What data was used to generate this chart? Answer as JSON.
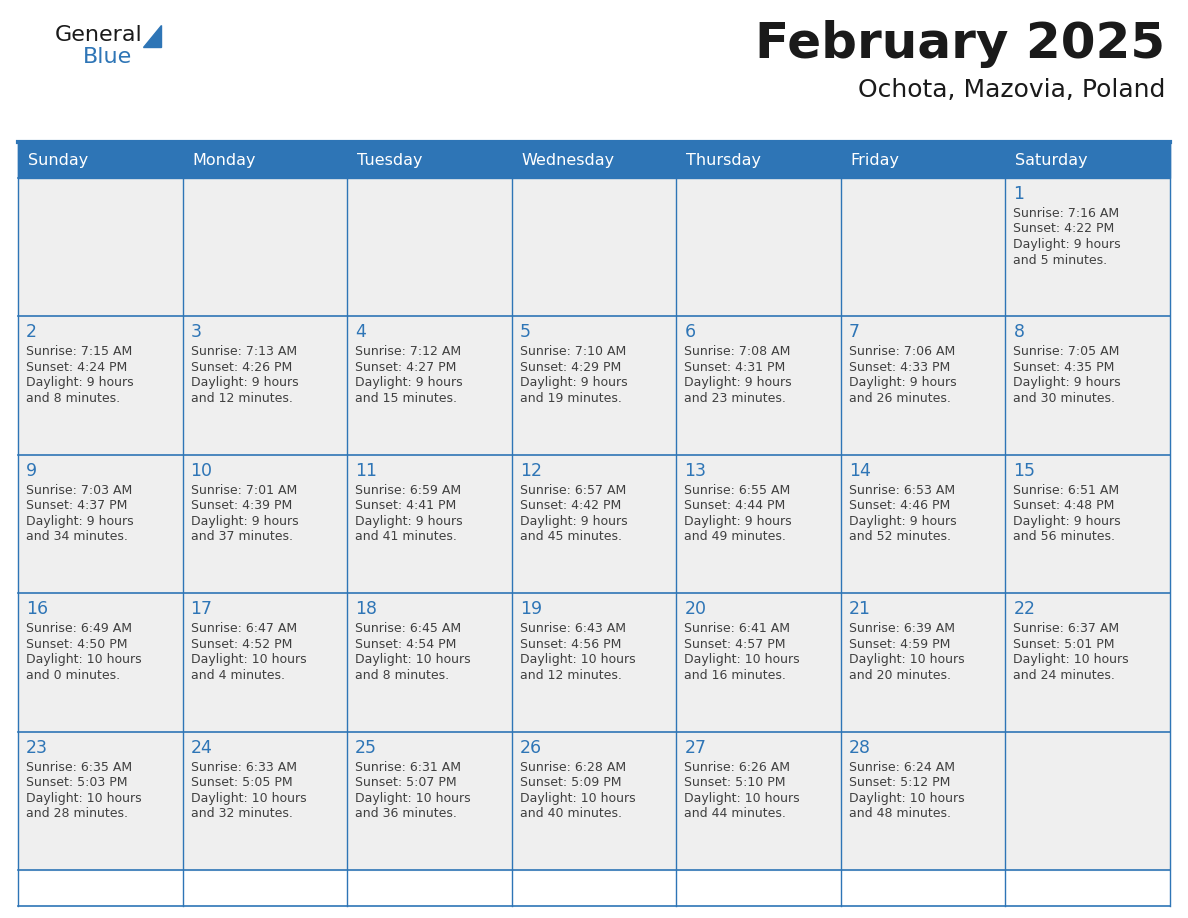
{
  "title": "February 2025",
  "subtitle": "Ochota, Mazovia, Poland",
  "days_of_week": [
    "Sunday",
    "Monday",
    "Tuesday",
    "Wednesday",
    "Thursday",
    "Friday",
    "Saturday"
  ],
  "header_bg": "#2E75B6",
  "header_text": "#FFFFFF",
  "cell_bg": "#EFEFEF",
  "border_color": "#2E75B6",
  "day_num_color": "#2E75B6",
  "text_color": "#404040",
  "weeks": [
    [
      {
        "day": null,
        "sunrise": null,
        "sunset": null,
        "daylight": null
      },
      {
        "day": null,
        "sunrise": null,
        "sunset": null,
        "daylight": null
      },
      {
        "day": null,
        "sunrise": null,
        "sunset": null,
        "daylight": null
      },
      {
        "day": null,
        "sunrise": null,
        "sunset": null,
        "daylight": null
      },
      {
        "day": null,
        "sunrise": null,
        "sunset": null,
        "daylight": null
      },
      {
        "day": null,
        "sunrise": null,
        "sunset": null,
        "daylight": null
      },
      {
        "day": 1,
        "sunrise": "7:16 AM",
        "sunset": "4:22 PM",
        "daylight": "9 hours\nand 5 minutes."
      }
    ],
    [
      {
        "day": 2,
        "sunrise": "7:15 AM",
        "sunset": "4:24 PM",
        "daylight": "9 hours\nand 8 minutes."
      },
      {
        "day": 3,
        "sunrise": "7:13 AM",
        "sunset": "4:26 PM",
        "daylight": "9 hours\nand 12 minutes."
      },
      {
        "day": 4,
        "sunrise": "7:12 AM",
        "sunset": "4:27 PM",
        "daylight": "9 hours\nand 15 minutes."
      },
      {
        "day": 5,
        "sunrise": "7:10 AM",
        "sunset": "4:29 PM",
        "daylight": "9 hours\nand 19 minutes."
      },
      {
        "day": 6,
        "sunrise": "7:08 AM",
        "sunset": "4:31 PM",
        "daylight": "9 hours\nand 23 minutes."
      },
      {
        "day": 7,
        "sunrise": "7:06 AM",
        "sunset": "4:33 PM",
        "daylight": "9 hours\nand 26 minutes."
      },
      {
        "day": 8,
        "sunrise": "7:05 AM",
        "sunset": "4:35 PM",
        "daylight": "9 hours\nand 30 minutes."
      }
    ],
    [
      {
        "day": 9,
        "sunrise": "7:03 AM",
        "sunset": "4:37 PM",
        "daylight": "9 hours\nand 34 minutes."
      },
      {
        "day": 10,
        "sunrise": "7:01 AM",
        "sunset": "4:39 PM",
        "daylight": "9 hours\nand 37 minutes."
      },
      {
        "day": 11,
        "sunrise": "6:59 AM",
        "sunset": "4:41 PM",
        "daylight": "9 hours\nand 41 minutes."
      },
      {
        "day": 12,
        "sunrise": "6:57 AM",
        "sunset": "4:42 PM",
        "daylight": "9 hours\nand 45 minutes."
      },
      {
        "day": 13,
        "sunrise": "6:55 AM",
        "sunset": "4:44 PM",
        "daylight": "9 hours\nand 49 minutes."
      },
      {
        "day": 14,
        "sunrise": "6:53 AM",
        "sunset": "4:46 PM",
        "daylight": "9 hours\nand 52 minutes."
      },
      {
        "day": 15,
        "sunrise": "6:51 AM",
        "sunset": "4:48 PM",
        "daylight": "9 hours\nand 56 minutes."
      }
    ],
    [
      {
        "day": 16,
        "sunrise": "6:49 AM",
        "sunset": "4:50 PM",
        "daylight": "10 hours\nand 0 minutes."
      },
      {
        "day": 17,
        "sunrise": "6:47 AM",
        "sunset": "4:52 PM",
        "daylight": "10 hours\nand 4 minutes."
      },
      {
        "day": 18,
        "sunrise": "6:45 AM",
        "sunset": "4:54 PM",
        "daylight": "10 hours\nand 8 minutes."
      },
      {
        "day": 19,
        "sunrise": "6:43 AM",
        "sunset": "4:56 PM",
        "daylight": "10 hours\nand 12 minutes."
      },
      {
        "day": 20,
        "sunrise": "6:41 AM",
        "sunset": "4:57 PM",
        "daylight": "10 hours\nand 16 minutes."
      },
      {
        "day": 21,
        "sunrise": "6:39 AM",
        "sunset": "4:59 PM",
        "daylight": "10 hours\nand 20 minutes."
      },
      {
        "day": 22,
        "sunrise": "6:37 AM",
        "sunset": "5:01 PM",
        "daylight": "10 hours\nand 24 minutes."
      }
    ],
    [
      {
        "day": 23,
        "sunrise": "6:35 AM",
        "sunset": "5:03 PM",
        "daylight": "10 hours\nand 28 minutes."
      },
      {
        "day": 24,
        "sunrise": "6:33 AM",
        "sunset": "5:05 PM",
        "daylight": "10 hours\nand 32 minutes."
      },
      {
        "day": 25,
        "sunrise": "6:31 AM",
        "sunset": "5:07 PM",
        "daylight": "10 hours\nand 36 minutes."
      },
      {
        "day": 26,
        "sunrise": "6:28 AM",
        "sunset": "5:09 PM",
        "daylight": "10 hours\nand 40 minutes."
      },
      {
        "day": 27,
        "sunrise": "6:26 AM",
        "sunset": "5:10 PM",
        "daylight": "10 hours\nand 44 minutes."
      },
      {
        "day": 28,
        "sunrise": "6:24 AM",
        "sunset": "5:12 PM",
        "daylight": "10 hours\nand 48 minutes."
      },
      {
        "day": null,
        "sunrise": null,
        "sunset": null,
        "daylight": null
      }
    ]
  ],
  "fig_width": 11.88,
  "fig_height": 9.18,
  "dpi": 100
}
